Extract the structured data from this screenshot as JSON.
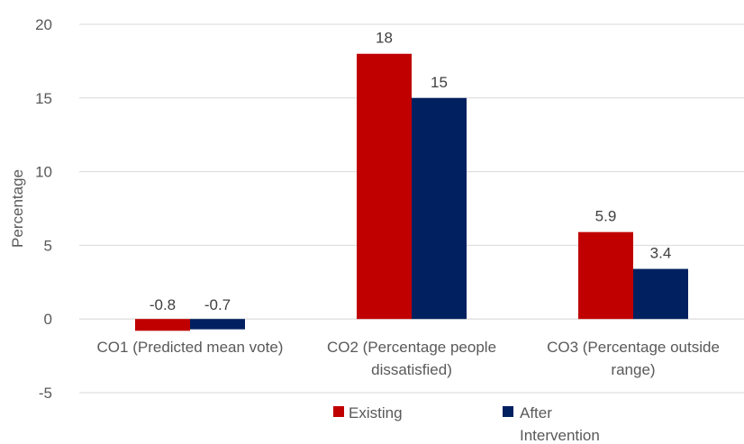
{
  "chart_data": {
    "type": "bar",
    "categories": [
      [
        "CO1 (Predicted mean vote)"
      ],
      [
        "CO2 (Percentage people",
        "dissatisfied)"
      ],
      [
        "CO3 (Percentage outside",
        "range)"
      ]
    ],
    "series": [
      {
        "name": "Existing",
        "values": [
          -0.8,
          18,
          5.9
        ],
        "color": "#c00000"
      },
      {
        "name": "After Intervention",
        "values": [
          -0.7,
          15,
          3.4
        ],
        "color": "#002060"
      }
    ],
    "data_labels": [
      [
        "-0.8",
        "18",
        "5.9"
      ],
      [
        "-0.7",
        "15",
        "3.4"
      ]
    ],
    "title": "",
    "xlabel": "",
    "ylabel": "Percentage",
    "ylim": [
      -5,
      20
    ],
    "yticks": [
      -5,
      0,
      5,
      10,
      15,
      20
    ],
    "grid": true,
    "legend_position": "bottom"
  }
}
